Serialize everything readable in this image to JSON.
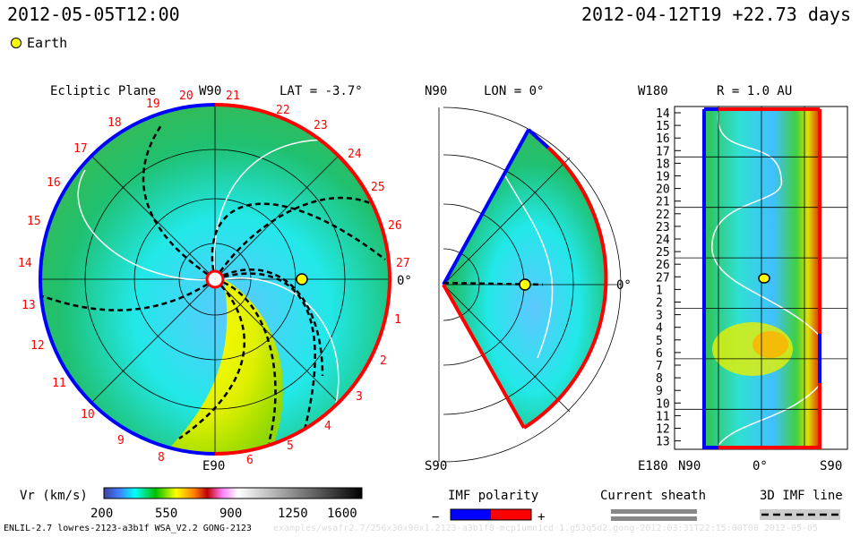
{
  "header": {
    "sim_time": "2012-05-05T12:00",
    "start_time": "2012-04-12T19",
    "elapsed": "+22.73 days",
    "earth_label": "Earth"
  },
  "chart_data": {
    "type": "heatmap",
    "quantity": "Vr (km/s)",
    "panels": [
      {
        "name": "ecliptic",
        "title": "Ecliptic Plane",
        "top_label": "W90",
        "bottom_label": "E90",
        "lat_label": "LAT = -3.7°",
        "right_label": "0°",
        "rotation_ticks": [
          "19",
          "20",
          "21",
          "22",
          "23",
          "24",
          "25",
          "26",
          "27",
          "1",
          "2",
          "3",
          "4",
          "5",
          "6",
          "8",
          "9",
          "10",
          "11",
          "12",
          "13",
          "14",
          "15",
          "16",
          "17",
          "18"
        ]
      },
      {
        "name": "meridional",
        "top_label": "N90",
        "bottom_label": "S90",
        "lon_label": "LON = 0°",
        "right_label": "0°"
      },
      {
        "name": "r_1au",
        "title": "R = 1.0 AU",
        "top_left": "W180",
        "bottom_left": "E180",
        "x_ticks": [
          "N90",
          "0°",
          "S90"
        ],
        "rows": [
          "14",
          "15",
          "16",
          "17",
          "18",
          "19",
          "20",
          "21",
          "22",
          "23",
          "24",
          "25",
          "26",
          "27",
          "1",
          "2",
          "3",
          "4",
          "5",
          "6",
          "7",
          "8",
          "9",
          "10",
          "11",
          "12",
          "13"
        ]
      }
    ],
    "colorbar": {
      "label": "Vr (km/s)",
      "min": 200,
      "max": 1600,
      "ticks": [
        "200",
        "550",
        "900",
        "1250",
        "1600"
      ]
    }
  },
  "legend": {
    "imf_polarity": "IMF polarity",
    "minus": "−",
    "plus": "+",
    "current_sheath": "Current sheath",
    "imf_line": "3D IMF line",
    "neg_color": "#0000ff",
    "pos_color": "#ff0000"
  },
  "footer": {
    "run": "ENLIL-2.7 lowres-2123-a3b1f WSA_V2.2 GONG-2123",
    "path": "examples/wsafr2.7/256x30x90x1.2123-a3b1f8-mcp1umn1cd-1.g53q5d2.gong-2012:03:31T22:15:00T00    2012-05-05"
  }
}
